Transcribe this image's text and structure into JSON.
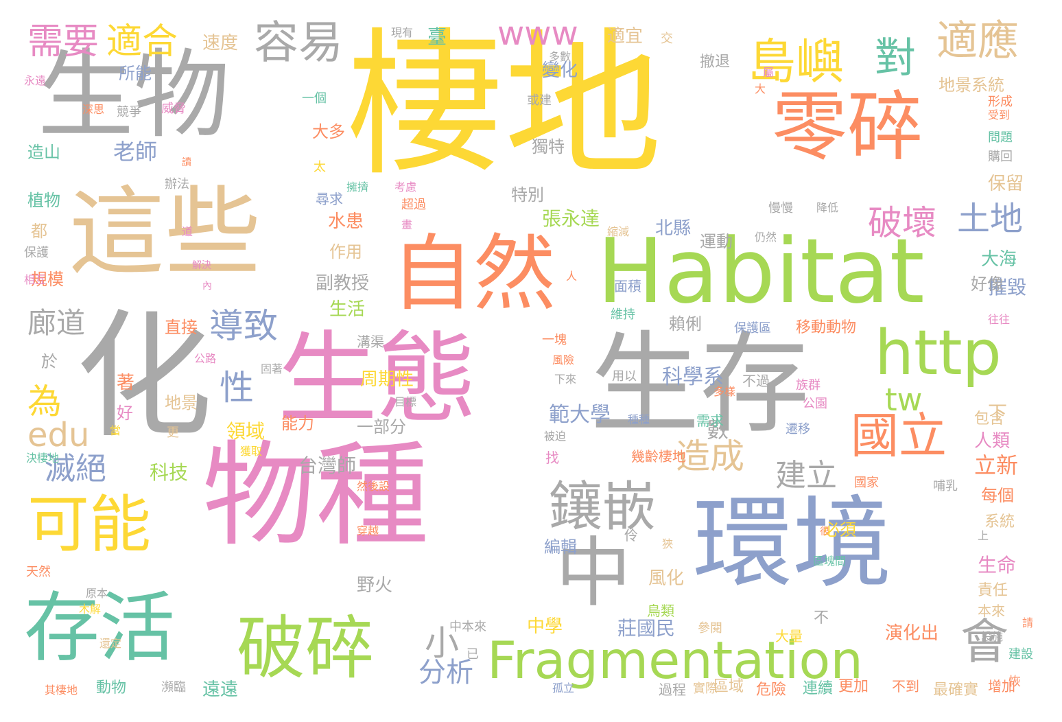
{
  "palette": {
    "yellow": "#fdd835",
    "grey": "#a9a9a9",
    "pink": "#e78ac3",
    "orange": "#fc8d62",
    "green": "#a6d854",
    "tan": "#e5c494",
    "teal": "#66c2a5",
    "blue": "#8da0cb"
  },
  "words": [
    "棲地",
    "生物",
    "零碎",
    "這些",
    "自然",
    "Habitat",
    "化",
    "生態",
    "生存",
    "物種",
    "環境",
    "http",
    "可能",
    "存活",
    "破碎",
    "Fragmentation",
    "中",
    "鑲嵌",
    "國立",
    "島嶼",
    "對",
    "適應",
    "容易",
    "需要",
    "適合",
    "www",
    "破壞",
    "土地",
    "導致",
    "性",
    "造成",
    "建立",
    "滅絕",
    "為",
    "edu",
    "tw",
    "會",
    "小",
    "分析",
    "廊道",
    "老師",
    "大多",
    "獨特",
    "特別",
    "張永達",
    "北縣",
    "作用",
    "副教授",
    "生活",
    "賴俐",
    "科學系",
    "範大學",
    "領域",
    "能力",
    "台灣師",
    "一部分",
    "數",
    "周期性",
    "中學",
    "莊國民",
    "編輯",
    "野火",
    "中本來",
    "風化",
    "鳥類",
    "不",
    "演化出",
    "本來",
    "責任",
    "生命",
    "每個",
    "立新",
    "人類",
    "包含",
    "下",
    "系統",
    "大海",
    "摧毀",
    "好像",
    "移動動物",
    "保護區",
    "直接",
    "科技",
    "地景",
    "著",
    "好",
    "植物",
    "造山",
    "辦法",
    "所能",
    "規模",
    "都",
    "保護",
    "相互",
    "永遠",
    "深思",
    "競爭",
    "速度",
    "現有",
    "臺",
    "變化",
    "適宜",
    "多數",
    "或建",
    "撤退",
    "地景系統",
    "形成",
    "受到",
    "問題",
    "購回",
    "保留",
    "慢慢",
    "降低",
    "仍然",
    "縮減",
    "面積",
    "維持",
    "往往",
    "溝渠",
    "運動",
    "水患",
    "超過",
    "考慮",
    "擁擠",
    "尋求",
    "太",
    "於",
    "固著",
    "風險",
    "公路",
    "一塊",
    "下來",
    "用以",
    "不過",
    "族群",
    "多樣",
    "公園",
    "目標",
    "需求",
    "遷移",
    "國家",
    "哺乳",
    "被迫",
    "種種",
    "找",
    "幾齡棲地",
    "然後設",
    "穿越",
    "必須",
    "很",
    "上",
    "區塊間",
    "建設",
    "設施",
    "參閱",
    "大量",
    "孤立",
    "區域",
    "危險",
    "連續",
    "更加",
    "不到",
    "最確實",
    "增加",
    "恢",
    "過程",
    "實際",
    "遠遠",
    "動物",
    "瀕臨",
    "其棲地",
    "還定",
    "木解",
    "原本",
    "天然",
    "決棲地",
    "獲取",
    "更",
    "當",
    "已",
    "伶",
    "狹",
    "交",
    "大",
    "屬",
    "讀",
    "道",
    "解決",
    "內",
    "人",
    "一個",
    "威脅",
    "畫",
    "請",
    "絡"
  ]
}
